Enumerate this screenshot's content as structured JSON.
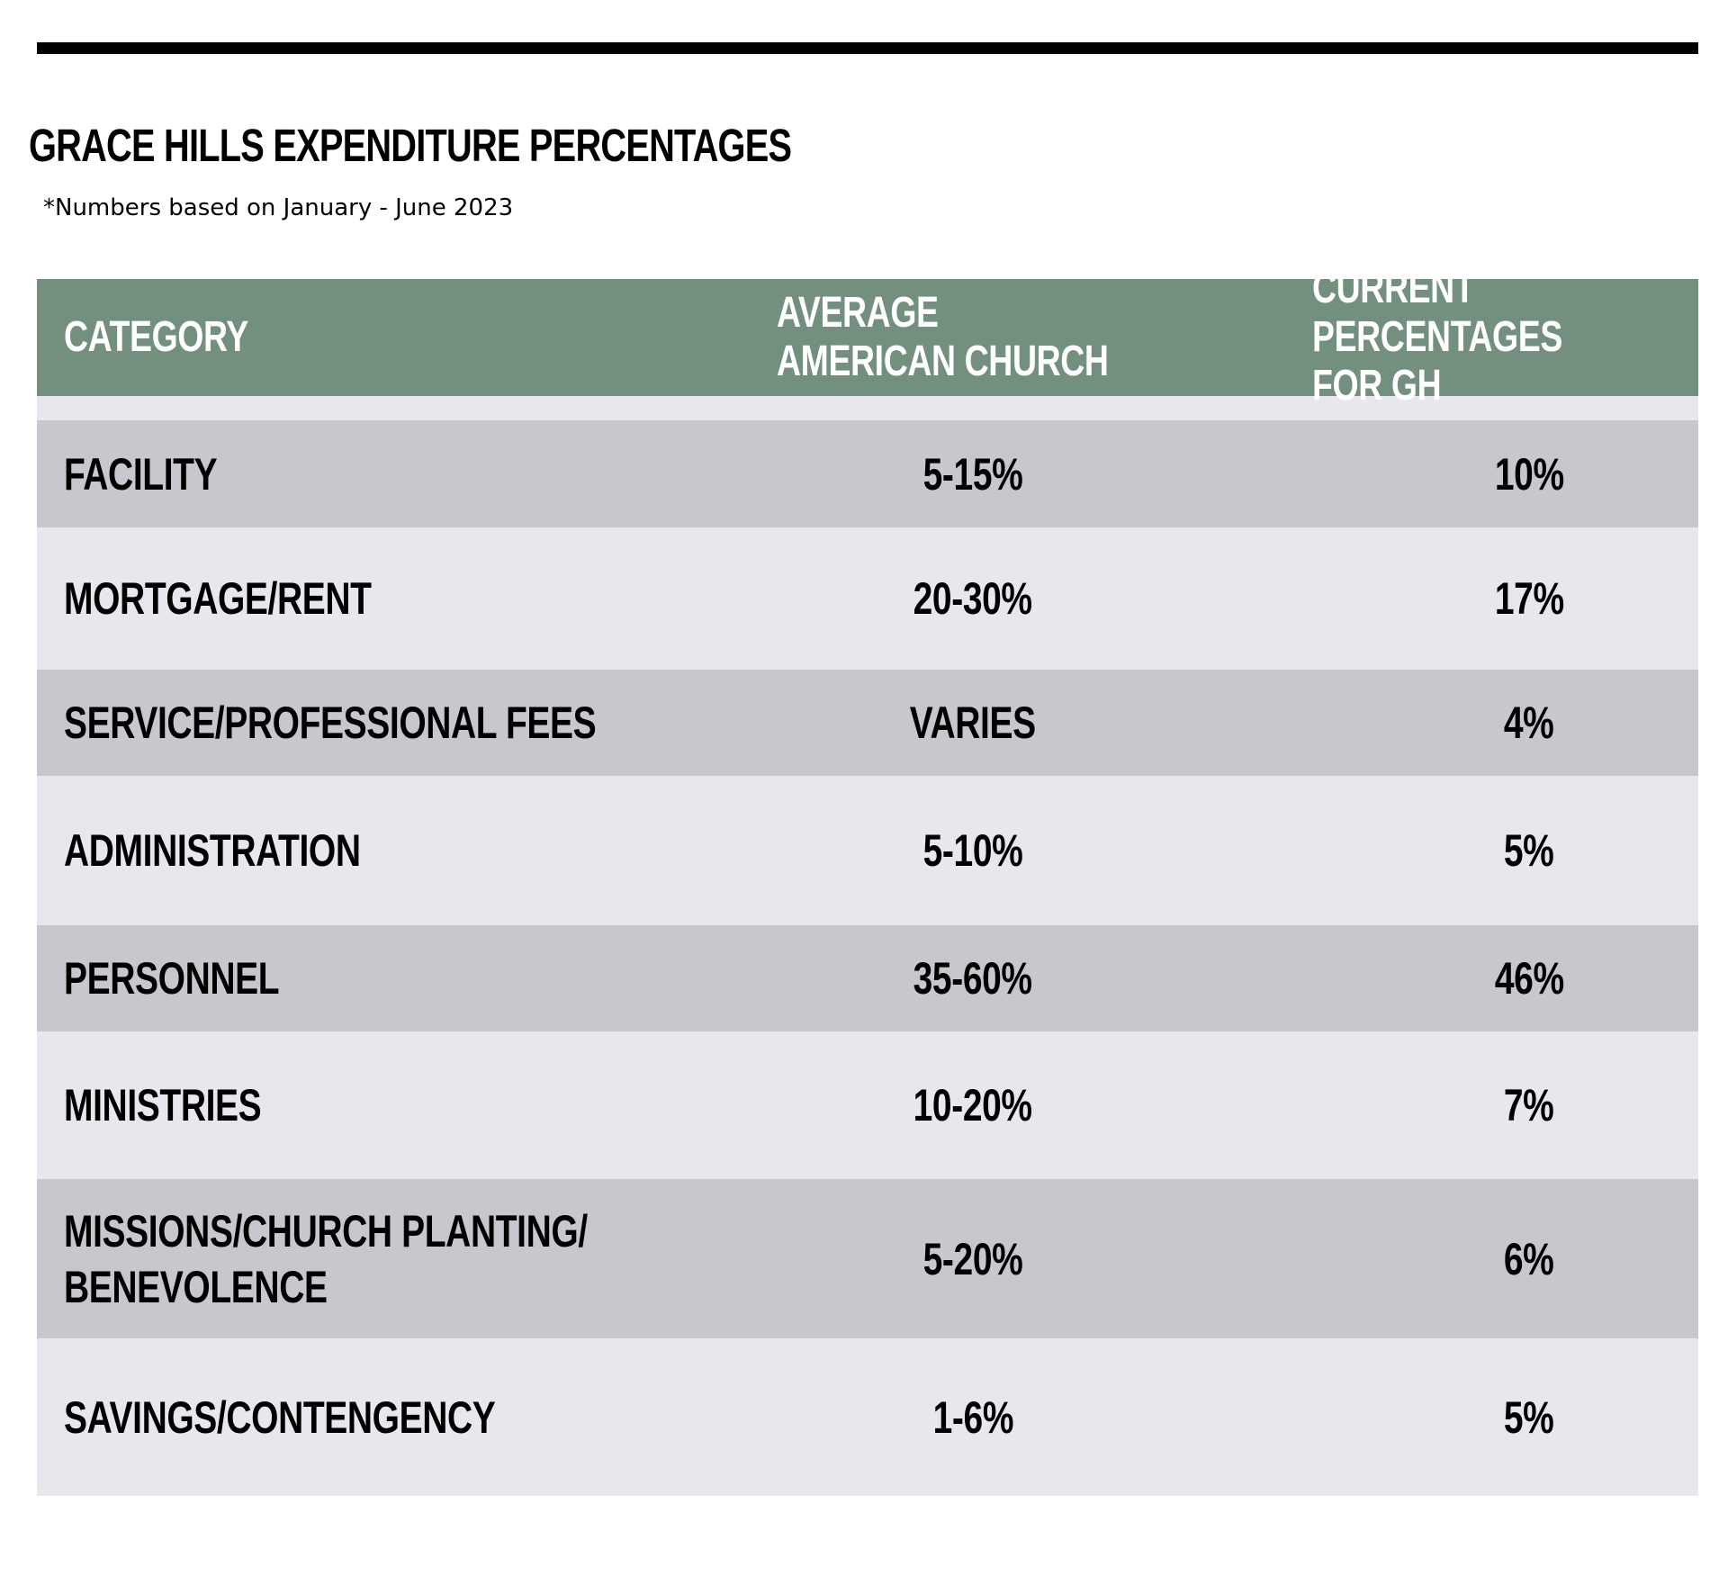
{
  "title": "GRACE HILLS EXPENDITURE PERCENTAGES",
  "subtitle": "*Numbers based on January - June 2023",
  "table": {
    "headers": {
      "category": "CATEGORY",
      "average": "AVERAGE\nAMERICAN CHURCH",
      "current": "CURRENT\nPERCENTAGES FOR GH"
    },
    "rows": [
      {
        "category": "FACILITY",
        "average": "5-15%",
        "current": "10%"
      },
      {
        "category": "MORTGAGE/RENT",
        "average": "20-30%",
        "current": "17%"
      },
      {
        "category": "SERVICE/PROFESSIONAL FEES",
        "average": "VARIES",
        "current": "4%"
      },
      {
        "category": "ADMINISTRATION",
        "average": "5-10%",
        "current": "5%"
      },
      {
        "category": "PERSONNEL",
        "average": "35-60%",
        "current": "46%"
      },
      {
        "category": "MINISTRIES",
        "average": "10-20%",
        "current": "7%"
      },
      {
        "category": "MISSIONS/CHURCH PLANTING/\nBENEVOLENCE",
        "average": "5-20%",
        "current": "6%"
      },
      {
        "category": "SAVINGS/CONTENGENCY",
        "average": "1-6%",
        "current": "5%"
      }
    ]
  },
  "colors": {
    "header_bg": "#72907d",
    "row_dark": "#c8c7cd",
    "row_light": "#e8e7ee",
    "rule": "#000000"
  }
}
